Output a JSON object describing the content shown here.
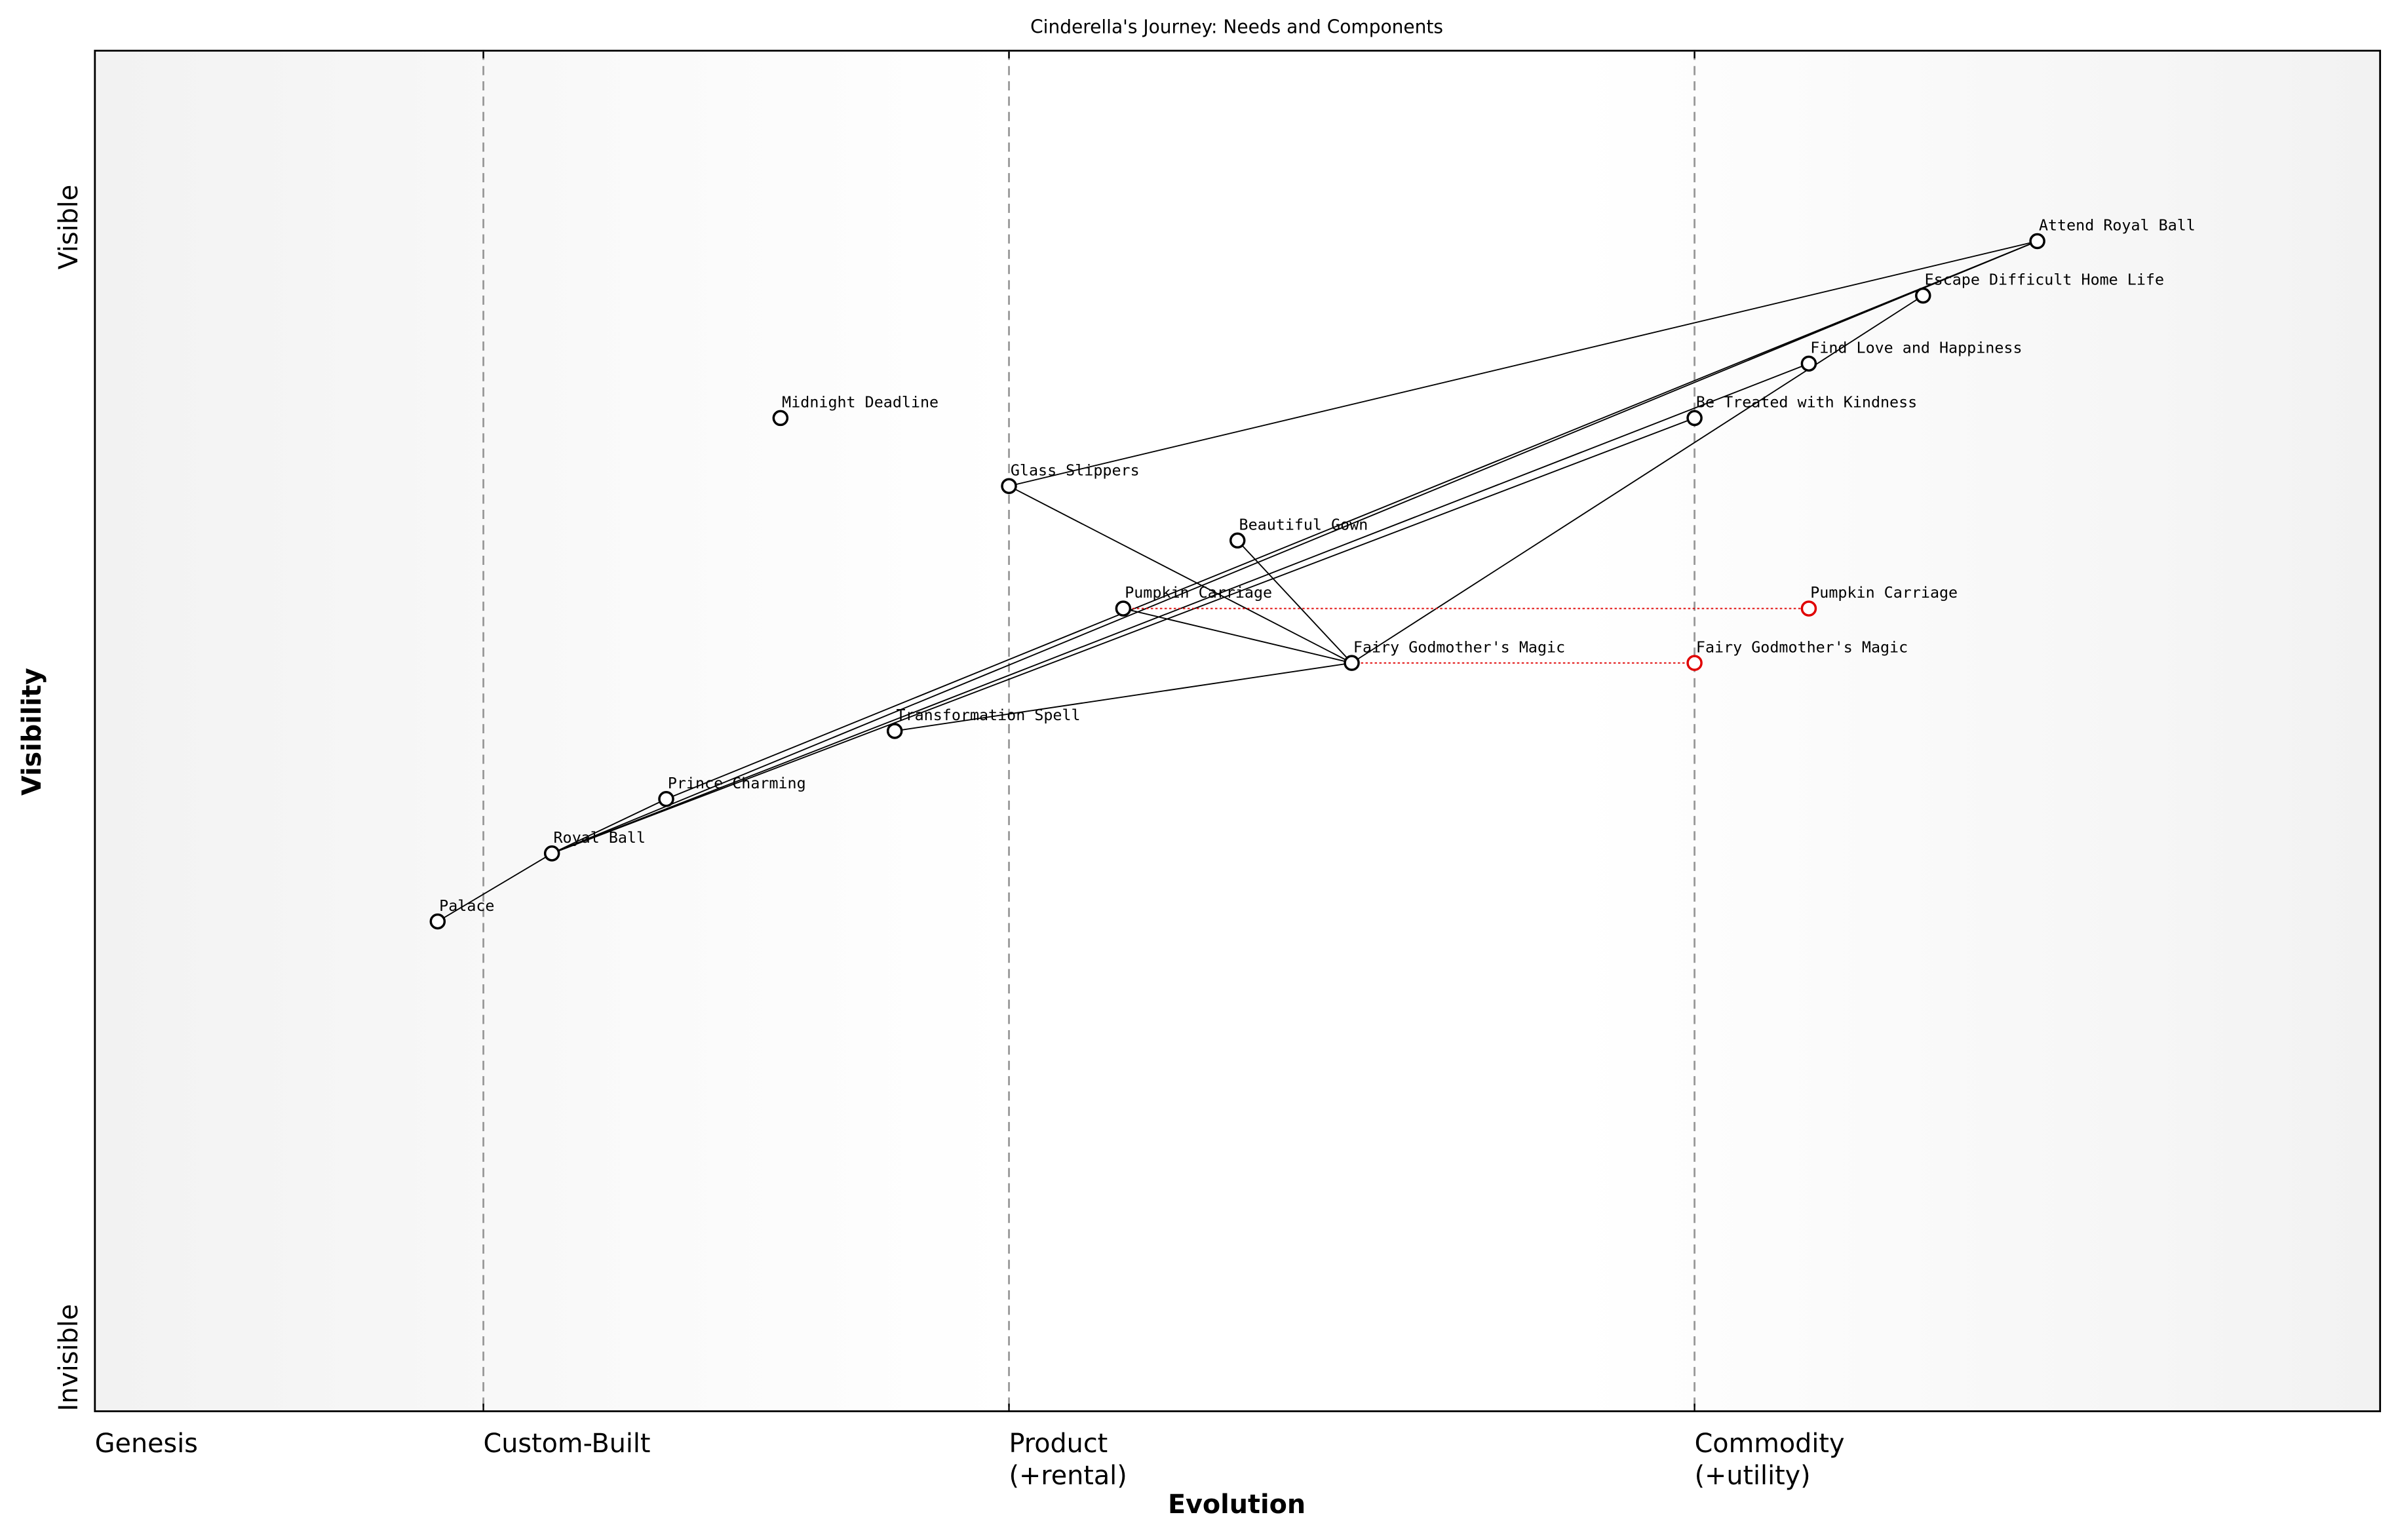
{
  "chart_data": {
    "type": "wardley",
    "title": "Cinderella's Journey: Needs and Components",
    "x_label": "Evolution",
    "y_label": "Visibility",
    "y_top_label": "Visible",
    "y_bottom_label": "Invisible",
    "xlim": [
      0,
      1
    ],
    "ylim": [
      0,
      1
    ],
    "xticks": [
      {
        "value": 0,
        "label": "Genesis"
      },
      {
        "value": 0.17,
        "label": "Custom-Built"
      },
      {
        "value": 0.4,
        "label": "Product\n(+rental)"
      },
      {
        "value": 0.7,
        "label": "Commodity\n(+utility)"
      }
    ],
    "components": [
      {
        "name": "Attend Royal Ball",
        "x": 0.85,
        "y": 0.86
      },
      {
        "name": "Escape Difficult Home Life",
        "x": 0.8,
        "y": 0.82
      },
      {
        "name": "Find Love and Happiness",
        "x": 0.75,
        "y": 0.77
      },
      {
        "name": "Be Treated with Kindness",
        "x": 0.7,
        "y": 0.73
      },
      {
        "name": "Midnight Deadline",
        "x": 0.3,
        "y": 0.73
      },
      {
        "name": "Glass Slippers",
        "x": 0.4,
        "y": 0.68
      },
      {
        "name": "Beautiful Gown",
        "x": 0.5,
        "y": 0.64
      },
      {
        "name": "Pumpkin Carriage",
        "x": 0.45,
        "y": 0.59
      },
      {
        "name": "Fairy Godmother's Magic",
        "x": 0.55,
        "y": 0.55
      },
      {
        "name": "Transformation Spell",
        "x": 0.35,
        "y": 0.5
      },
      {
        "name": "Prince Charming",
        "x": 0.25,
        "y": 0.45
      },
      {
        "name": "Royal Ball",
        "x": 0.2,
        "y": 0.41
      },
      {
        "name": "Palace",
        "x": 0.15,
        "y": 0.36
      }
    ],
    "links": [
      [
        "Attend Royal Ball",
        "Glass Slippers"
      ],
      [
        "Attend Royal Ball",
        "Royal Ball"
      ],
      [
        "Attend Royal Ball",
        "Prince Charming"
      ],
      [
        "Find Love and Happiness",
        "Royal Ball"
      ],
      [
        "Be Treated with Kindness",
        "Royal Ball"
      ],
      [
        "Escape Difficult Home Life",
        "Fairy Godmother's Magic"
      ],
      [
        "Glass Slippers",
        "Fairy Godmother's Magic"
      ],
      [
        "Beautiful Gown",
        "Fairy Godmother's Magic"
      ],
      [
        "Pumpkin Carriage",
        "Fairy Godmother's Magic"
      ],
      [
        "Transformation Spell",
        "Fairy Godmother's Magic"
      ],
      [
        "Royal Ball",
        "Prince Charming"
      ],
      [
        "Palace",
        "Royal Ball"
      ]
    ],
    "evolve": [
      {
        "name": "Pumpkin Carriage",
        "x": 0.75
      },
      {
        "name": "Fairy Godmother's Magic",
        "x": 0.7
      }
    ],
    "evolve_color": "#e00000"
  }
}
